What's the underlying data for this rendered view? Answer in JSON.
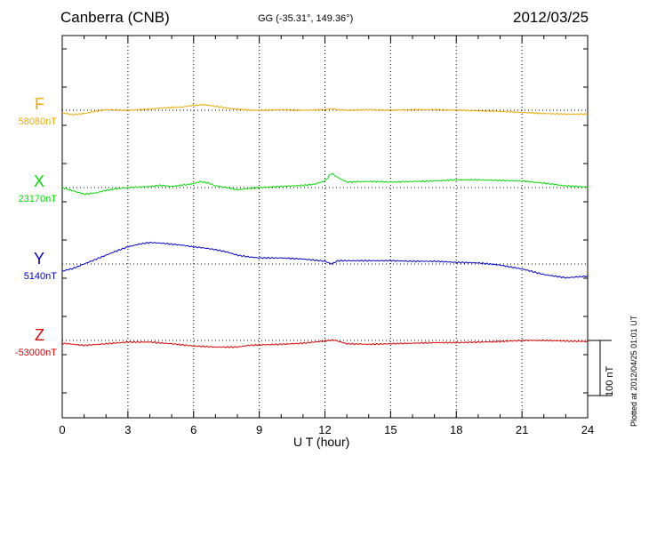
{
  "header": {
    "station": "Canberra (CNB)",
    "coords": "GG (-35.31°, 149.36°)",
    "date": "2012/03/25"
  },
  "footer": {
    "plotted": "Plotted at 2012/04/25 01:01  UT",
    "scale_label": "100 nT"
  },
  "colors": {
    "F": "#f0a800",
    "X": "#00dd00",
    "Y": "#0000cc",
    "Z": "#dd0000"
  },
  "chart_data": {
    "type": "line",
    "title": "Canberra (CNB)",
    "xlabel": "U T (hour)",
    "ylabel": "",
    "xlim": [
      0,
      24
    ],
    "x_ticks": [
      "0",
      "3",
      "6",
      "9",
      "12",
      "15",
      "18",
      "21",
      "24"
    ],
    "grid": "dotted at every 3 hours and at each component baseline",
    "scale_bar_nT": 100,
    "units": "nT",
    "series": [
      {
        "name": "F",
        "baseline_label": "58080nT",
        "baseline_nT": 58080,
        "points": [
          [
            0,
            -5
          ],
          [
            0.5,
            -8
          ],
          [
            1,
            -6
          ],
          [
            1.5,
            -2
          ],
          [
            2,
            1
          ],
          [
            3,
            0
          ],
          [
            4,
            2
          ],
          [
            4.5,
            4
          ],
          [
            5,
            5
          ],
          [
            5.5,
            6
          ],
          [
            6,
            9
          ],
          [
            6.5,
            10
          ],
          [
            7,
            7
          ],
          [
            7.5,
            4
          ],
          [
            8,
            2
          ],
          [
            8.5,
            0
          ],
          [
            9,
            0
          ],
          [
            10,
            1
          ],
          [
            11,
            0
          ],
          [
            12,
            1
          ],
          [
            12.3,
            3
          ],
          [
            12.6,
            1
          ],
          [
            13,
            0
          ],
          [
            14,
            1
          ],
          [
            15,
            0
          ],
          [
            16,
            1
          ],
          [
            17,
            1
          ],
          [
            18,
            0
          ],
          [
            19,
            -1
          ],
          [
            20,
            -2
          ],
          [
            21,
            -4
          ],
          [
            22,
            -6
          ],
          [
            23,
            -7
          ],
          [
            24,
            -7
          ]
        ]
      },
      {
        "name": "X",
        "baseline_label": "23170nT",
        "baseline_nT": 23170,
        "points": [
          [
            0,
            0
          ],
          [
            0.5,
            -6
          ],
          [
            1,
            -12
          ],
          [
            1.5,
            -10
          ],
          [
            2,
            -5
          ],
          [
            2.5,
            -2
          ],
          [
            3,
            0
          ],
          [
            4,
            2
          ],
          [
            4.5,
            4
          ],
          [
            5,
            2
          ],
          [
            6,
            7
          ],
          [
            6.3,
            11
          ],
          [
            6.7,
            8
          ],
          [
            7,
            3
          ],
          [
            7.5,
            0
          ],
          [
            8,
            -4
          ],
          [
            8.5,
            -2
          ],
          [
            9,
            0
          ],
          [
            10,
            2
          ],
          [
            11,
            4
          ],
          [
            11.5,
            6
          ],
          [
            12,
            12
          ],
          [
            12.3,
            26
          ],
          [
            12.6,
            18
          ],
          [
            13,
            10
          ],
          [
            14,
            11
          ],
          [
            15,
            10
          ],
          [
            16,
            11
          ],
          [
            17,
            12
          ],
          [
            18,
            14
          ],
          [
            19,
            14
          ],
          [
            20,
            13
          ],
          [
            21,
            12
          ],
          [
            22,
            8
          ],
          [
            23,
            3
          ],
          [
            24,
            1
          ]
        ]
      },
      {
        "name": "Y",
        "baseline_label": "5140nT",
        "baseline_nT": 5140,
        "points": [
          [
            0,
            -13
          ],
          [
            0.5,
            -8
          ],
          [
            1,
            0
          ],
          [
            1.5,
            8
          ],
          [
            2,
            16
          ],
          [
            2.5,
            24
          ],
          [
            3,
            31
          ],
          [
            3.5,
            36
          ],
          [
            4,
            39
          ],
          [
            4.5,
            38
          ],
          [
            5,
            36
          ],
          [
            5.5,
            34
          ],
          [
            6,
            31
          ],
          [
            6.5,
            29
          ],
          [
            7,
            26
          ],
          [
            7.5,
            22
          ],
          [
            8,
            16
          ],
          [
            8.5,
            13
          ],
          [
            9,
            11
          ],
          [
            10,
            11
          ],
          [
            11,
            9
          ],
          [
            12,
            5
          ],
          [
            12.3,
            0
          ],
          [
            12.6,
            6
          ],
          [
            13,
            6
          ],
          [
            14,
            6
          ],
          [
            15,
            6
          ],
          [
            16,
            5
          ],
          [
            17,
            5
          ],
          [
            18,
            3
          ],
          [
            19,
            2
          ],
          [
            20,
            -2
          ],
          [
            21,
            -9
          ],
          [
            22,
            -19
          ],
          [
            23,
            -25
          ],
          [
            24,
            -22
          ]
        ]
      },
      {
        "name": "Z",
        "baseline_label": "-53000nT",
        "baseline_nT": -53000,
        "points": [
          [
            0,
            -5
          ],
          [
            1,
            -9
          ],
          [
            2,
            -6
          ],
          [
            3,
            -3
          ],
          [
            4,
            -3
          ],
          [
            5,
            -6
          ],
          [
            6,
            -10
          ],
          [
            7,
            -12
          ],
          [
            8,
            -12
          ],
          [
            8.5,
            -9
          ],
          [
            9,
            -8
          ],
          [
            10,
            -7
          ],
          [
            11,
            -5
          ],
          [
            12,
            -1
          ],
          [
            12.4,
            1
          ],
          [
            13,
            -6
          ],
          [
            14,
            -7
          ],
          [
            15,
            -6
          ],
          [
            16,
            -5
          ],
          [
            17,
            -4
          ],
          [
            18,
            -4
          ],
          [
            19,
            -3
          ],
          [
            20,
            -2
          ],
          [
            21,
            0
          ],
          [
            22,
            0
          ],
          [
            23,
            -1
          ],
          [
            24,
            -2
          ]
        ]
      }
    ]
  }
}
